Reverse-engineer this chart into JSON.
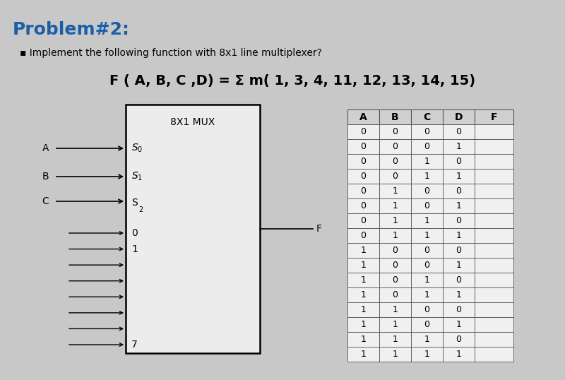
{
  "title": "Problem#2:",
  "subtitle": "▪ Implement the following function with 8x1 line multiplexer?",
  "formula": "F ( A, B, C ,D) = Σ m( 1, 3, 4, 11, 12, 13, 14, 15)",
  "bg_color": "#c8c8c8",
  "mux_bg": "#ececec",
  "mux_label": "8X1 MUX",
  "mux_output": "F",
  "table_headers": [
    "A",
    "B",
    "C",
    "D",
    "F"
  ],
  "table_data": [
    [
      0,
      0,
      0,
      0
    ],
    [
      0,
      0,
      0,
      1
    ],
    [
      0,
      0,
      1,
      0
    ],
    [
      0,
      0,
      1,
      1
    ],
    [
      0,
      1,
      0,
      0
    ],
    [
      0,
      1,
      0,
      1
    ],
    [
      0,
      1,
      1,
      0
    ],
    [
      0,
      1,
      1,
      1
    ],
    [
      1,
      0,
      0,
      0
    ],
    [
      1,
      0,
      0,
      1
    ],
    [
      1,
      0,
      1,
      0
    ],
    [
      1,
      0,
      1,
      1
    ],
    [
      1,
      1,
      0,
      0
    ],
    [
      1,
      1,
      0,
      1
    ],
    [
      1,
      1,
      1,
      0
    ],
    [
      1,
      1,
      1,
      1
    ]
  ],
  "title_color": "#1a5fa8",
  "title_fontsize": 18,
  "subtitle_fontsize": 10,
  "formula_fontsize": 14
}
